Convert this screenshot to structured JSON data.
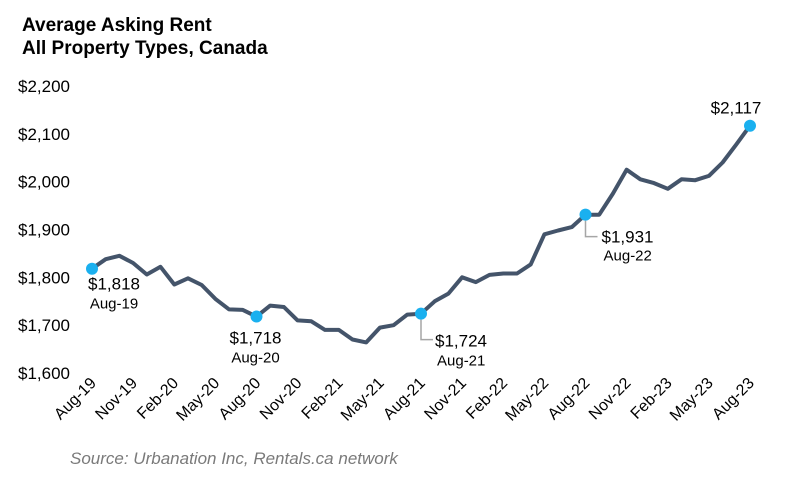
{
  "title": "Average Asking Rent",
  "subtitle": "All Property Types, Canada",
  "source": "Source: Urbanation Inc, Rentals.ca network",
  "colors": {
    "line": "#44546a",
    "marker": "#1ab0ef",
    "leader": "#a6a6a6",
    "text": "#000000"
  },
  "chart_data": {
    "type": "line",
    "title": "Average Asking Rent",
    "subtitle": "All Property Types, Canada",
    "xlabel": "",
    "ylabel": "",
    "ylim": [
      1600,
      2200
    ],
    "yticks": [
      1600,
      1700,
      1800,
      1900,
      2000,
      2100,
      2200
    ],
    "ytick_labels": [
      "$1,600",
      "$1,700",
      "$1,800",
      "$1,900",
      "$2,000",
      "$2,100",
      "$2,200"
    ],
    "grid": false,
    "x_tick_labels": [
      "Aug-19",
      "Nov-19",
      "Feb-20",
      "May-20",
      "Aug-20",
      "Nov-20",
      "Feb-21",
      "May-21",
      "Aug-21",
      "Nov-21",
      "Feb-22",
      "May-22",
      "Aug-22",
      "Nov-22",
      "Feb-23",
      "May-23",
      "Aug-23"
    ],
    "x": [
      "Aug-19",
      "Sep-19",
      "Oct-19",
      "Nov-19",
      "Dec-19",
      "Jan-20",
      "Feb-20",
      "Mar-20",
      "Apr-20",
      "May-20",
      "Jun-20",
      "Jul-20",
      "Aug-20",
      "Sep-20",
      "Oct-20",
      "Nov-20",
      "Dec-20",
      "Jan-21",
      "Feb-21",
      "Mar-21",
      "Apr-21",
      "May-21",
      "Jun-21",
      "Jul-21",
      "Aug-21",
      "Sep-21",
      "Oct-21",
      "Nov-21",
      "Dec-21",
      "Jan-22",
      "Feb-22",
      "Mar-22",
      "Apr-22",
      "May-22",
      "Jun-22",
      "Jul-22",
      "Aug-22",
      "Sep-22",
      "Oct-22",
      "Nov-22",
      "Dec-22",
      "Jan-23",
      "Feb-23",
      "Mar-23",
      "Apr-23",
      "May-23",
      "Jun-23",
      "Jul-23",
      "Aug-23"
    ],
    "values": [
      1818,
      1838,
      1845,
      1830,
      1806,
      1822,
      1785,
      1798,
      1784,
      1755,
      1733,
      1732,
      1718,
      1741,
      1738,
      1710,
      1708,
      1690,
      1690,
      1670,
      1664,
      1695,
      1700,
      1722,
      1724,
      1750,
      1766,
      1800,
      1790,
      1805,
      1808,
      1808,
      1827,
      1890,
      1898,
      1905,
      1931,
      1931,
      1975,
      2025,
      2005,
      1997,
      1985,
      2005,
      2003,
      2012,
      2040,
      2078,
      2117
    ],
    "annotations": [
      {
        "index": 0,
        "value": "$1,818",
        "date": "Aug-19"
      },
      {
        "index": 12,
        "value": "$1,718",
        "date": "Aug-20"
      },
      {
        "index": 24,
        "value": "$1,724",
        "date": "Aug-21"
      },
      {
        "index": 36,
        "value": "$1,931",
        "date": "Aug-22"
      },
      {
        "index": 48,
        "value": "$2,117",
        "date": ""
      }
    ]
  }
}
